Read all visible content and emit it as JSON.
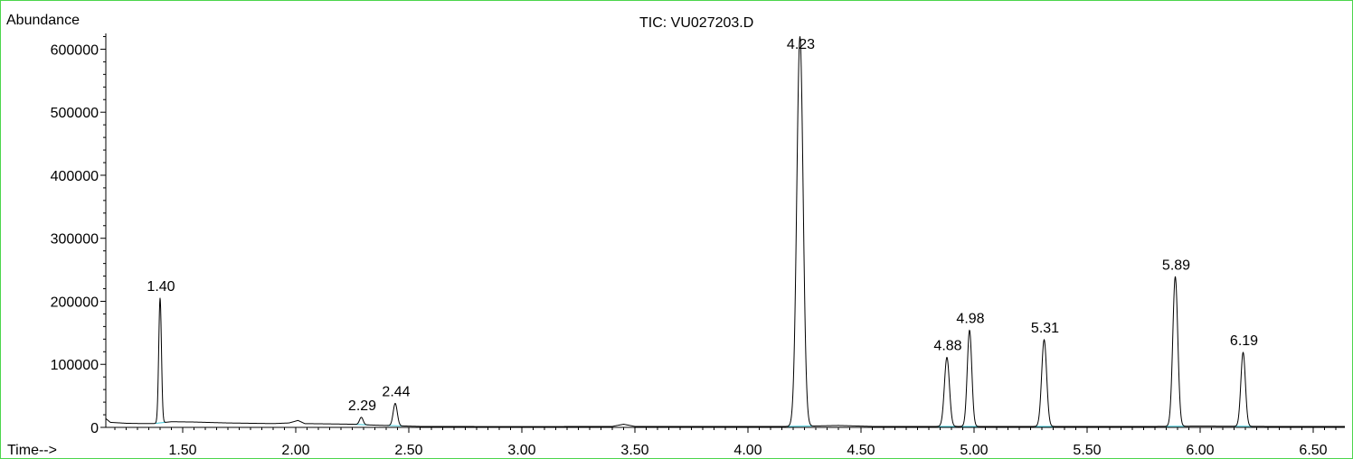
{
  "chart_data": {
    "type": "line",
    "title": "TIC: VU027203.D",
    "ylabel": "Abundance",
    "xlabel": "Time-->",
    "xlim": [
      1.16,
      6.64
    ],
    "ylim": [
      0,
      625000
    ],
    "x_ticks": [
      "1.50",
      "2.00",
      "2.50",
      "3.00",
      "3.50",
      "4.00",
      "4.50",
      "5.00",
      "5.50",
      "6.00",
      "6.50"
    ],
    "y_ticks": [
      "0",
      "100000",
      "200000",
      "300000",
      "400000",
      "500000",
      "600000"
    ],
    "baseline": [
      [
        1.16,
        14000
      ],
      [
        1.18,
        8000
      ],
      [
        1.25,
        6500
      ],
      [
        1.33,
        6000
      ],
      [
        1.37,
        6000
      ],
      [
        1.45,
        9000
      ],
      [
        1.55,
        8500
      ],
      [
        1.6,
        8000
      ],
      [
        1.7,
        7000
      ],
      [
        1.8,
        6500
      ],
      [
        1.9,
        6000
      ],
      [
        1.97,
        7000
      ],
      [
        2.01,
        11000
      ],
      [
        2.04,
        6000
      ],
      [
        2.15,
        5500
      ],
      [
        2.25,
        5000
      ],
      [
        2.35,
        3500
      ],
      [
        2.45,
        2500
      ],
      [
        2.55,
        1500
      ],
      [
        3.0,
        1200
      ],
      [
        3.4,
        1500
      ],
      [
        3.45,
        5000
      ],
      [
        3.5,
        1500
      ],
      [
        3.6,
        1500
      ],
      [
        4.0,
        1500
      ],
      [
        4.2,
        1500
      ],
      [
        4.4,
        3000
      ],
      [
        4.55,
        1500
      ],
      [
        4.8,
        1500
      ],
      [
        5.0,
        1500
      ],
      [
        5.4,
        1500
      ],
      [
        5.8,
        1500
      ],
      [
        6.0,
        2000
      ],
      [
        6.3,
        1500
      ],
      [
        6.64,
        1500
      ]
    ],
    "peaks": [
      {
        "rt": 1.4,
        "label": "1.40",
        "height": 205000,
        "width": 0.006
      },
      {
        "rt": 2.29,
        "label": "2.29",
        "height": 16000,
        "width": 0.008
      },
      {
        "rt": 2.44,
        "label": "2.44",
        "height": 38000,
        "width": 0.009
      },
      {
        "rt": 4.23,
        "label": "4.23",
        "height": 620000,
        "width": 0.014
      },
      {
        "rt": 4.88,
        "label": "4.88",
        "height": 111000,
        "width": 0.011
      },
      {
        "rt": 4.98,
        "label": "4.98",
        "height": 154000,
        "width": 0.01
      },
      {
        "rt": 5.31,
        "label": "5.31",
        "height": 139000,
        "width": 0.011
      },
      {
        "rt": 5.89,
        "label": "5.89",
        "height": 239000,
        "width": 0.011
      },
      {
        "rt": 6.19,
        "label": "6.19",
        "height": 119000,
        "width": 0.01
      }
    ]
  },
  "colors": {
    "frame": "#4cd64c",
    "trace": "#000000",
    "integration_baseline": "#40c8d8"
  }
}
